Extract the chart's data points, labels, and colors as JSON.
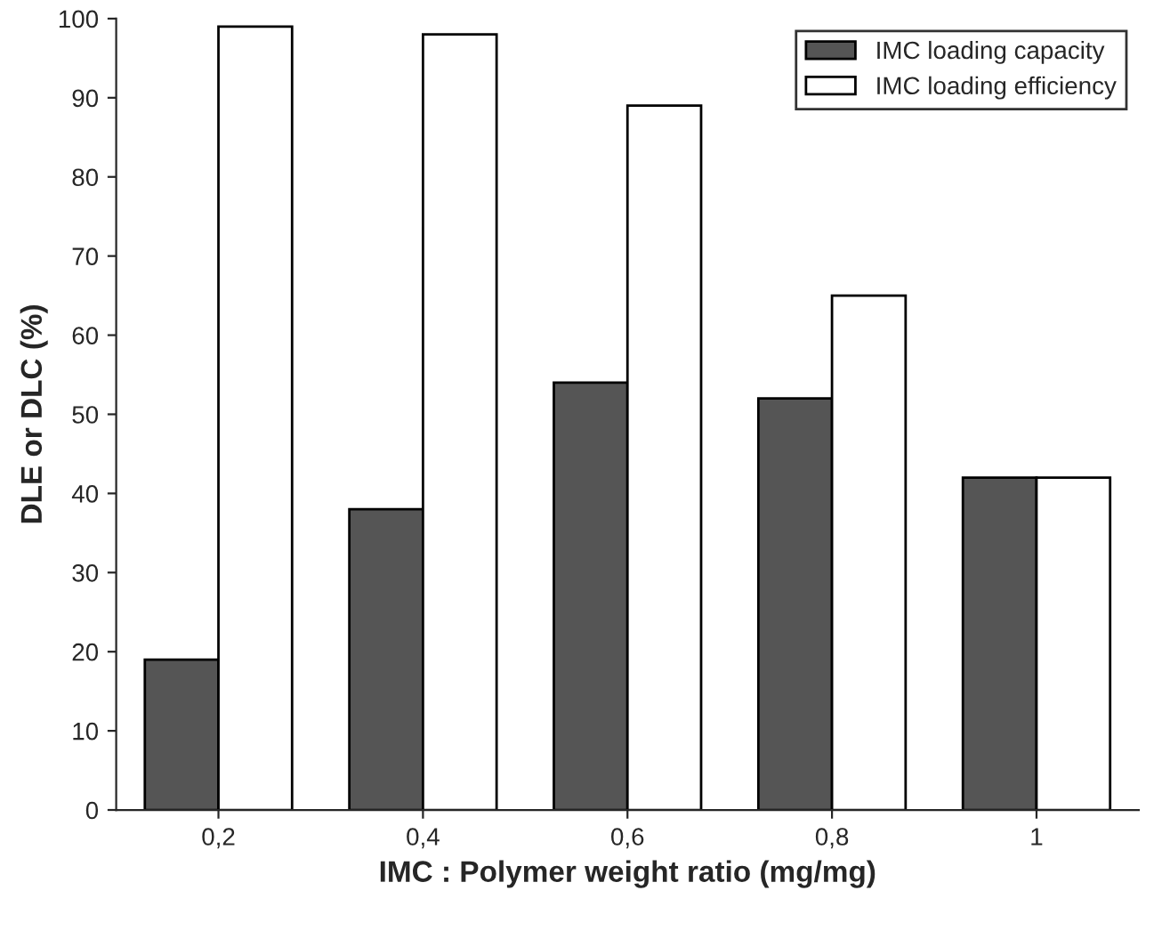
{
  "chart_data": {
    "type": "bar",
    "xlabel": "IMC : Polymer weight ratio (mg/mg)",
    "ylabel": "DLE or DLC (%)",
    "categories": [
      "0,2",
      "0,4",
      "0,6",
      "0,8",
      "1"
    ],
    "series": [
      {
        "name": "IMC loading capacity",
        "color": "#555555",
        "values": [
          19,
          38,
          54,
          52,
          42
        ]
      },
      {
        "name": "IMC loading efficiency",
        "color": "#ffffff",
        "values": [
          99,
          98,
          89,
          65,
          42
        ]
      }
    ],
    "ylim": [
      0,
      100
    ],
    "yticks": [
      0,
      10,
      20,
      30,
      40,
      50,
      60,
      70,
      80,
      90,
      100
    ],
    "grid": false,
    "legend": "top right"
  }
}
